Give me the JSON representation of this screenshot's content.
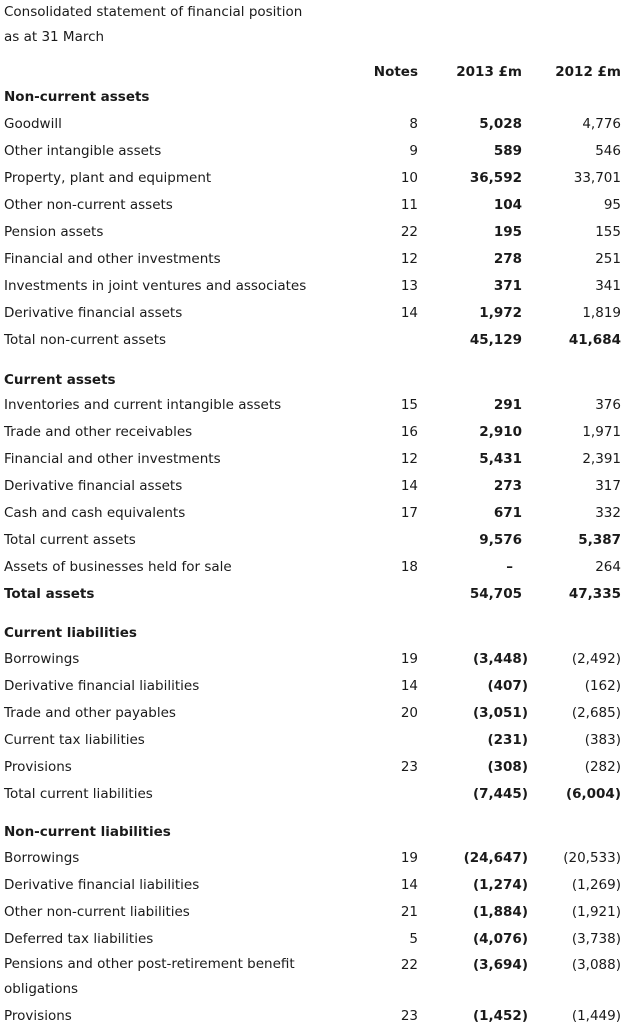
{
  "title": {
    "line1": "Consolidated statement of financial position",
    "line2": "as at 31 March"
  },
  "columns": {
    "notes": "Notes",
    "y2013": "2013 £m",
    "y2012": "2012 £m"
  },
  "sections": {
    "non_current_assets": {
      "heading": "Non-current assets",
      "rows": [
        {
          "label": "Goodwill",
          "note": "8",
          "y2013": "5,028",
          "y2012": "4,776"
        },
        {
          "label": "Other intangible assets",
          "note": "9",
          "y2013": "589",
          "y2012": "546"
        },
        {
          "label": "Property, plant and equipment",
          "note": "10",
          "y2013": "36,592",
          "y2012": "33,701"
        },
        {
          "label": "Other non-current assets",
          "note": "11",
          "y2013": "104",
          "y2012": "95"
        },
        {
          "label": "Pension assets",
          "note": "22",
          "y2013": "195",
          "y2012": "155"
        },
        {
          "label": "Financial and other investments",
          "note": "12",
          "y2013": "278",
          "y2012": "251"
        },
        {
          "label": "Investments in joint ventures and associates",
          "note": "13",
          "y2013": "371",
          "y2012": "341"
        },
        {
          "label": "Derivative financial assets",
          "note": "14",
          "y2013": "1,972",
          "y2012": "1,819"
        }
      ],
      "total": {
        "label": "Total non-current assets",
        "y2013": "45,129",
        "y2012": "41,684"
      }
    },
    "current_assets": {
      "heading": "Current assets",
      "rows": [
        {
          "label": "Inventories and current intangible assets",
          "note": "15",
          "y2013": "291",
          "y2012": "376"
        },
        {
          "label": "Trade and other receivables",
          "note": "16",
          "y2013": "2,910",
          "y2012": "1,971"
        },
        {
          "label": "Financial and other investments",
          "note": "12",
          "y2013": "5,431",
          "y2012": "2,391"
        },
        {
          "label": "Derivative financial assets",
          "note": "14",
          "y2013": "273",
          "y2012": "317"
        },
        {
          "label": "Cash and cash equivalents",
          "note": "17",
          "y2013": "671",
          "y2012": "332"
        }
      ],
      "total": {
        "label": "Total current assets",
        "y2013": "9,576",
        "y2012": "5,387"
      },
      "held_for_sale": {
        "label": "Assets of businesses held for sale",
        "note": "18",
        "y2013": "–",
        "y2012": "264"
      },
      "total_assets": {
        "label": "Total assets",
        "y2013": "54,705",
        "y2012": "47,335"
      }
    },
    "current_liabilities": {
      "heading": "Current liabilities",
      "rows": [
        {
          "label": "Borrowings",
          "note": "19",
          "y2013": "(3,448)",
          "y2012": "(2,492)"
        },
        {
          "label": "Derivative financial liabilities",
          "note": "14",
          "y2013": "(407)",
          "y2012": "(162)"
        },
        {
          "label": "Trade and other payables",
          "note": "20",
          "y2013": "(3,051)",
          "y2012": "(2,685)"
        },
        {
          "label": "Current tax liabilities",
          "note": "",
          "y2013": "(231)",
          "y2012": "(383)"
        },
        {
          "label": "Provisions",
          "note": "23",
          "y2013": "(308)",
          "y2012": "(282)"
        }
      ],
      "total": {
        "label": "Total current liabilities",
        "y2013": "(7,445)",
        "y2012": "(6,004)"
      }
    },
    "non_current_liabilities": {
      "heading": "Non-current liabilities",
      "rows": [
        {
          "label": "Borrowings",
          "note": "19",
          "y2013": "(24,647)",
          "y2012": "(20,533)"
        },
        {
          "label": "Derivative financial liabilities",
          "note": "14",
          "y2013": "(1,274)",
          "y2012": "(1,269)"
        },
        {
          "label": "Other non-current liabilities",
          "note": "21",
          "y2013": "(1,884)",
          "y2012": "(1,921)"
        },
        {
          "label": "Deferred tax liabilities",
          "note": "5",
          "y2013": "(4,076)",
          "y2012": "(3,738)"
        },
        {
          "label": "Pensions and other post-retirement benefit obligations",
          "note": "22",
          "y2013": "(3,694)",
          "y2012": "(3,088)"
        },
        {
          "label": "Provisions",
          "note": "23",
          "y2013": "(1,452)",
          "y2012": "(1,449)"
        }
      ]
    }
  }
}
